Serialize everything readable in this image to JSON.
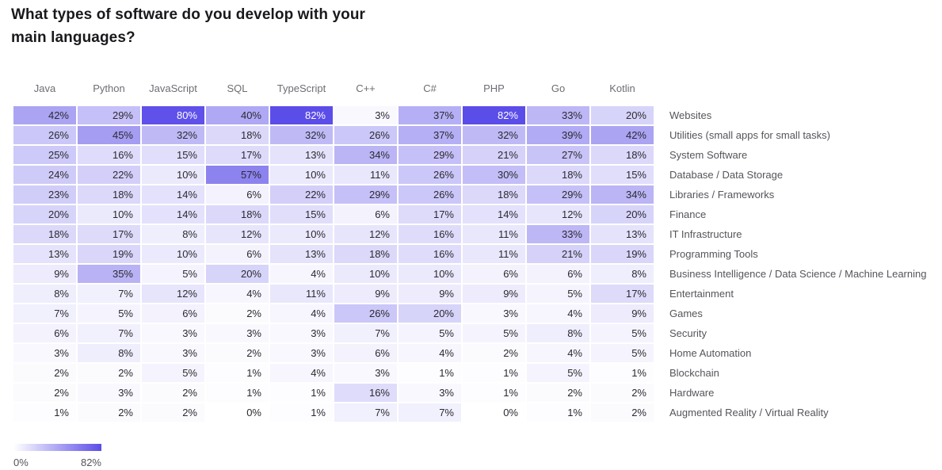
{
  "title": "What types of software do you develop with your main languages?",
  "legend": {
    "min_label": "0%",
    "max_label": "82%"
  },
  "chart_data": {
    "type": "heatmap",
    "title": "What types of software do you develop with your main languages?",
    "columns": [
      "Java",
      "Python",
      "JavaScript",
      "SQL",
      "TypeScript",
      "C++",
      "C#",
      "PHP",
      "Go",
      "Kotlin"
    ],
    "rows": [
      "Websites",
      "Utilities (small apps for small tasks)",
      "System Software",
      "Database / Data Storage",
      "Libraries / Frameworks",
      "Finance",
      "IT Infrastructure",
      "Programming Tools",
      "Business Intelligence / Data Science / Machine Learning",
      "Entertainment",
      "Games",
      "Security",
      "Home Automation",
      "Blockchain",
      "Hardware",
      "Augmented Reality / Virtual Reality"
    ],
    "values": [
      [
        42,
        29,
        80,
        40,
        82,
        3,
        37,
        82,
        33,
        20
      ],
      [
        26,
        45,
        32,
        18,
        32,
        26,
        37,
        32,
        39,
        42
      ],
      [
        25,
        16,
        15,
        17,
        13,
        34,
        29,
        21,
        27,
        18
      ],
      [
        24,
        22,
        10,
        57,
        10,
        11,
        26,
        30,
        18,
        15
      ],
      [
        23,
        18,
        14,
        6,
        22,
        29,
        26,
        18,
        29,
        34
      ],
      [
        20,
        10,
        14,
        18,
        15,
        6,
        17,
        14,
        12,
        20
      ],
      [
        18,
        17,
        8,
        12,
        10,
        12,
        16,
        11,
        33,
        13
      ],
      [
        13,
        19,
        10,
        6,
        13,
        18,
        16,
        11,
        21,
        19
      ],
      [
        9,
        35,
        5,
        20,
        4,
        10,
        10,
        6,
        6,
        8
      ],
      [
        8,
        7,
        12,
        4,
        11,
        9,
        9,
        9,
        5,
        17
      ],
      [
        7,
        5,
        6,
        2,
        4,
        26,
        20,
        3,
        4,
        9
      ],
      [
        6,
        7,
        3,
        3,
        3,
        7,
        5,
        5,
        8,
        5
      ],
      [
        3,
        8,
        3,
        2,
        3,
        6,
        4,
        2,
        4,
        5
      ],
      [
        2,
        2,
        5,
        1,
        4,
        3,
        1,
        1,
        5,
        1
      ],
      [
        2,
        3,
        2,
        1,
        1,
        16,
        3,
        1,
        2,
        2
      ],
      [
        1,
        2,
        2,
        0,
        1,
        7,
        7,
        0,
        1,
        2
      ]
    ],
    "value_suffix": "%",
    "scale": {
      "min": 0,
      "max": 82,
      "min_color": "#ffffff",
      "max_color": "#5b4de8"
    },
    "legend": {
      "min_label": "0%",
      "max_label": "82%"
    },
    "layout": {
      "grid": "off",
      "legend_position": "bottom-left",
      "value_alignment": "right"
    }
  }
}
